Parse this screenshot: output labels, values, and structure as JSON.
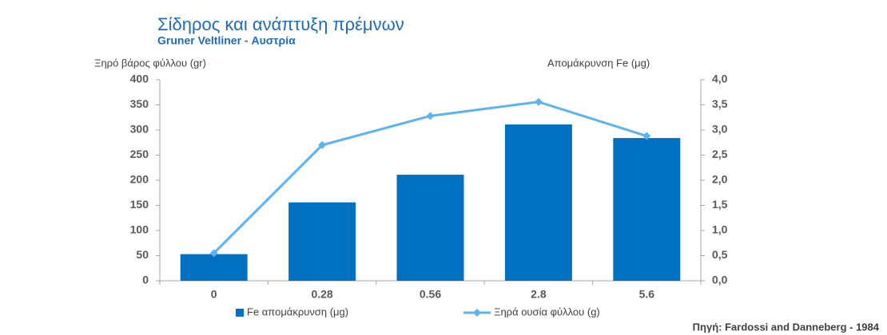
{
  "chart_data": {
    "type": "combo",
    "title": "Σίδηρος και ανάπτυξη πρέμνων",
    "subtitle": "Gruner Veltliner  - Αυστρία",
    "y_label": "Ξηρό βάρος φύλλου (gr)",
    "y2_label": "Απομάκρυνση Fe  (μg)",
    "source": "Πηγή: Fardossi and Danneberg - 1984",
    "categories": [
      "0",
      "0.28",
      "0.56",
      "2.8",
      "5.6"
    ],
    "series": [
      {
        "name": "Fe απομάκρυνση (μg)",
        "type": "bar",
        "axis": "y2",
        "color": "#0070c0",
        "values": [
          0.53,
          1.56,
          2.11,
          3.11,
          2.84
        ]
      },
      {
        "name": "Ξηρά ουσία φύλλου (g)",
        "type": "line",
        "color": "#5cb3ef",
        "values": [
          55,
          270,
          328,
          356,
          288
        ]
      }
    ],
    "ylim": [
      0,
      400
    ],
    "yticks": [
      0,
      50,
      100,
      150,
      200,
      250,
      300,
      350,
      400
    ],
    "y2lim": [
      0,
      4
    ],
    "y2ticks": [
      {
        "value": 0,
        "label": "0,0"
      },
      {
        "value": 0.5,
        "label": "0,5"
      },
      {
        "value": 1,
        "label": "1,0"
      },
      {
        "value": 1.5,
        "label": "1,5"
      },
      {
        "value": 2,
        "label": "2,0"
      },
      {
        "value": 2.5,
        "label": "2,5"
      },
      {
        "value": 3,
        "label": "3,0"
      },
      {
        "value": 3.5,
        "label": "3,5"
      },
      {
        "value": 4,
        "label": "4,0"
      }
    ],
    "grid": false,
    "legend": "bottom"
  }
}
